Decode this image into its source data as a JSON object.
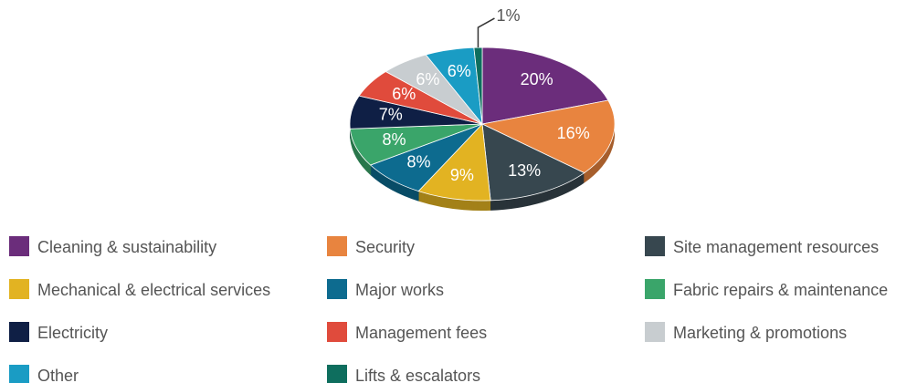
{
  "chart_data": {
    "type": "pie",
    "categories": [
      "Cleaning & sustainability",
      "Security",
      "Site management resources",
      "Mechanical & electrical services",
      "Major works",
      "Fabric repairs & maintenance",
      "Electricity",
      "Management fees",
      "Marketing & promotions",
      "Other",
      "Lifts & escalators"
    ],
    "values": [
      20,
      16,
      13,
      9,
      8,
      8,
      7,
      6,
      6,
      6,
      1
    ],
    "value_labels": [
      "20%",
      "16%",
      "13%",
      "9%",
      "8%",
      "8%",
      "7%",
      "6%",
      "6%",
      "6%",
      "1%"
    ],
    "colors": [
      "#6b2d7b",
      "#e8843f",
      "#37474f",
      "#e2b322",
      "#0d6b8f",
      "#3aa56a",
      "#0f1f45",
      "#e04b3c",
      "#c8cdd0",
      "#1a9cc4",
      "#0e6e5e"
    ],
    "legend": "bottom"
  }
}
